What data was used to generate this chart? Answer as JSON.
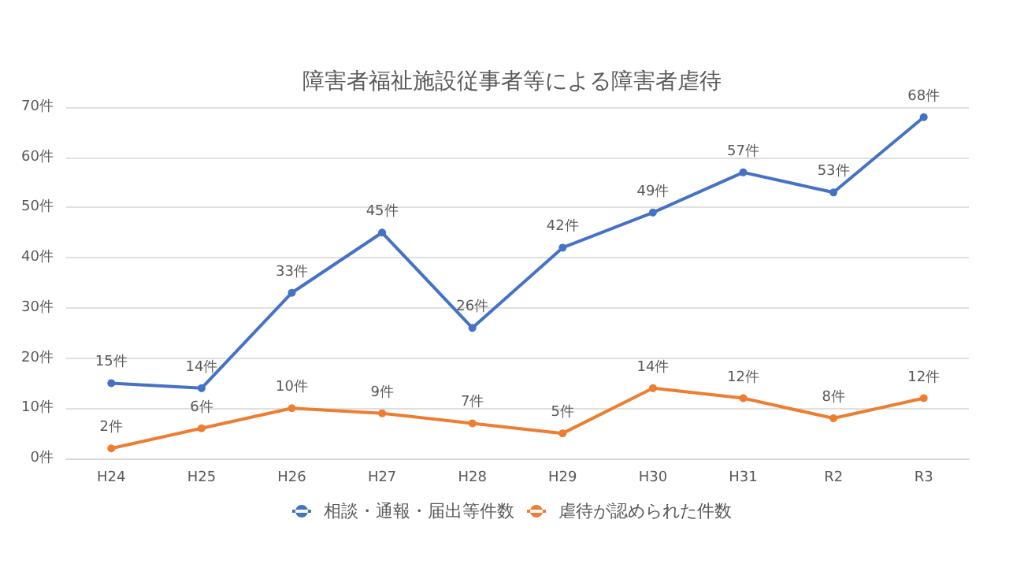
{
  "chart_data": {
    "type": "line",
    "title": "障害者福祉施設従事者等による障害者虐待",
    "categories": [
      "H24",
      "H25",
      "H26",
      "H27",
      "H28",
      "H29",
      "H30",
      "H31",
      "R2",
      "R3"
    ],
    "series": [
      {
        "name": "相談・通報・届出等件数",
        "color": "#4472c4",
        "values": [
          15,
          14,
          33,
          45,
          26,
          42,
          49,
          57,
          53,
          68
        ],
        "value_labels": [
          "15件",
          "14件",
          "33件",
          "45件",
          "26件",
          "42件",
          "49件",
          "57件",
          "53件",
          "68件"
        ]
      },
      {
        "name": "虐待が認められた件数",
        "color": "#ed7d31",
        "values": [
          2,
          6,
          10,
          9,
          7,
          5,
          14,
          12,
          8,
          12
        ],
        "value_labels": [
          "2件",
          "6件",
          "10件",
          "9件",
          "7件",
          "5件",
          "14件",
          "12件",
          "8件",
          "12件"
        ]
      }
    ],
    "ylim": [
      0,
      70
    ],
    "yticks": [
      {
        "value": 0,
        "label": "0件"
      },
      {
        "value": 10,
        "label": "10件"
      },
      {
        "value": 20,
        "label": "20件"
      },
      {
        "value": 30,
        "label": "30件"
      },
      {
        "value": 40,
        "label": "40件"
      },
      {
        "value": 50,
        "label": "50件"
      },
      {
        "value": 60,
        "label": "60件"
      },
      {
        "value": 70,
        "label": "70件"
      }
    ],
    "grid": "y",
    "legend": "bottom",
    "marker": "circle",
    "line_style": "solid"
  }
}
